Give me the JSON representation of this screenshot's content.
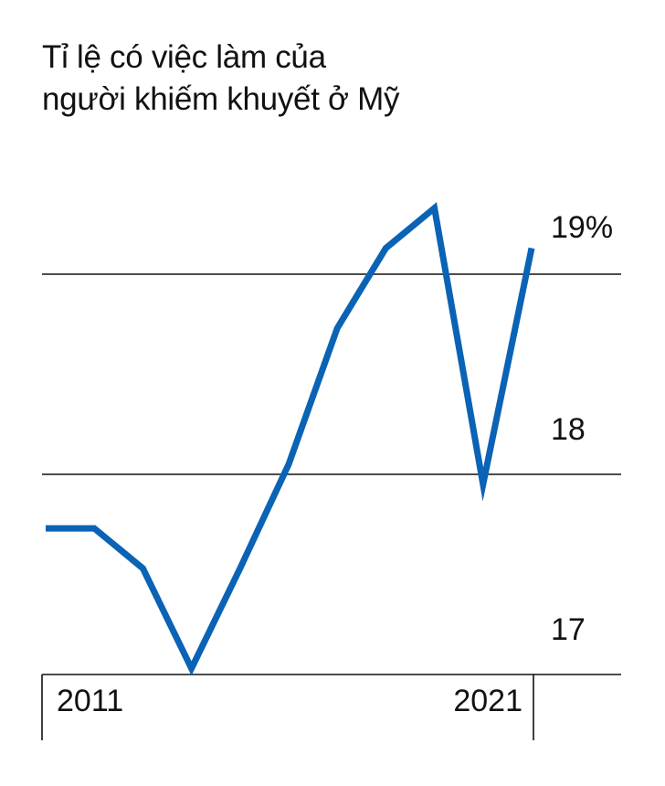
{
  "title_lines": [
    "Tỉ lệ có việc làm của",
    "người khiếm khuyết ở Mỹ"
  ],
  "chart_data": {
    "type": "line",
    "title": "Tỉ lệ có việc làm của người khiếm khuyết ở Mỹ",
    "x": [
      2011,
      2012,
      2013,
      2014,
      2015,
      2016,
      2017,
      2018,
      2019,
      2020,
      2021
    ],
    "series": [
      {
        "values": [
          17.73,
          17.73,
          17.53,
          17.03,
          17.53,
          18.05,
          18.73,
          19.13,
          19.33,
          17.95,
          19.13
        ],
        "color": "#0a63b5"
      }
    ],
    "ylim": [
      17,
      19.5
    ],
    "yticks": [
      17,
      18,
      19
    ],
    "ytick_labels": [
      "17",
      "18",
      "19%"
    ],
    "xtick_labels": [
      {
        "x": 2011,
        "label": "2011"
      },
      {
        "x": 2021,
        "label": "2021"
      }
    ],
    "gridlines_y": [
      18,
      19
    ],
    "grid": true,
    "legend": "none"
  }
}
